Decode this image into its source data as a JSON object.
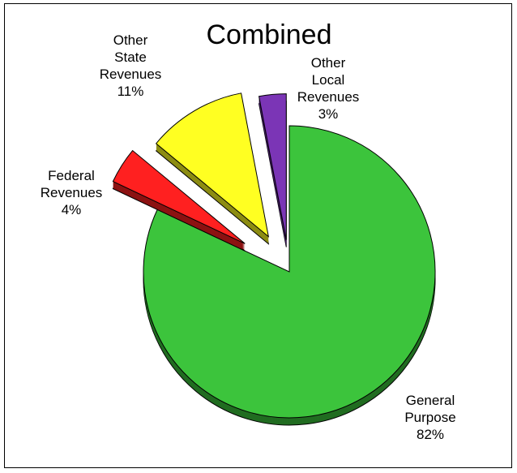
{
  "chart_data": {
    "type": "pie",
    "title": "Combined",
    "slices": [
      {
        "label": [
          "General",
          "Purpose"
        ],
        "value": 82,
        "value_label": "82%",
        "color": "#3CC43C"
      },
      {
        "label": [
          "Federal",
          "Revenues"
        ],
        "value": 4,
        "value_label": "4%",
        "color": "#FF2020"
      },
      {
        "label": [
          "Other",
          "State",
          "Revenues"
        ],
        "value": 11,
        "value_label": "11%",
        "color": "#FFFF22"
      },
      {
        "label": [
          "Other",
          "Local",
          "Revenues"
        ],
        "value": 3,
        "value_label": "3%",
        "color": "#7B35B6"
      }
    ],
    "exploded": true,
    "three_d": true,
    "legend": "none"
  }
}
